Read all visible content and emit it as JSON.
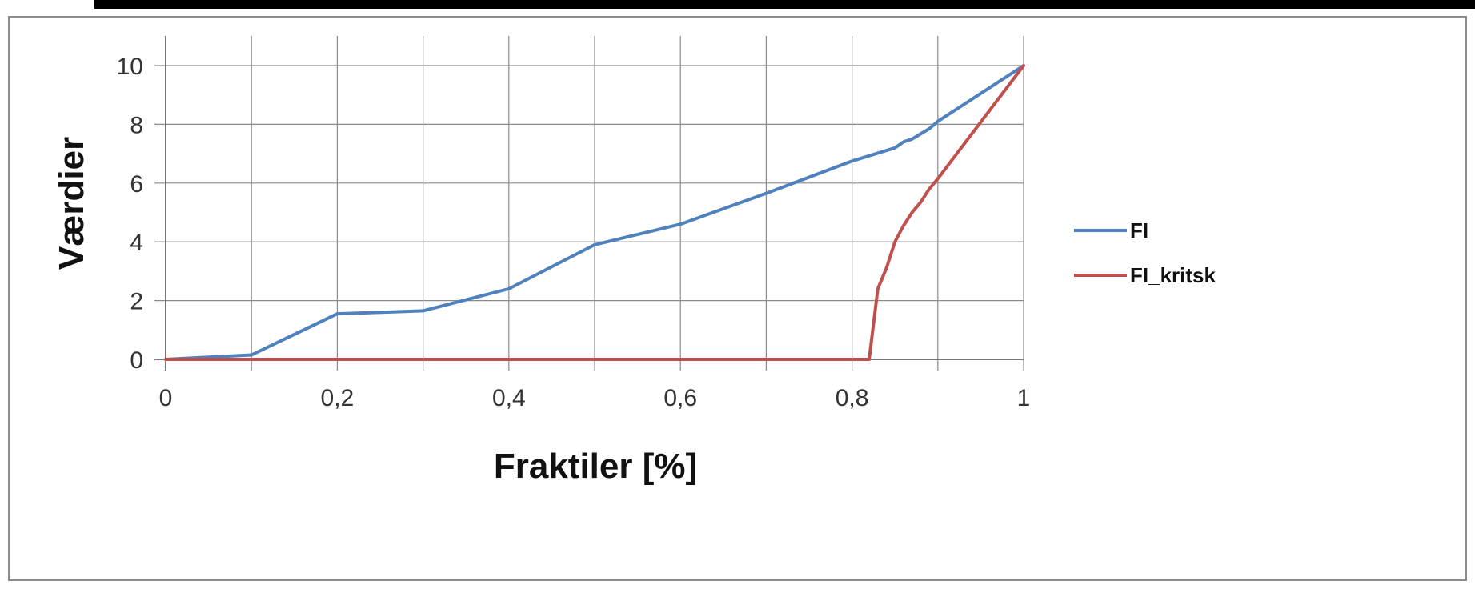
{
  "chart_data": {
    "type": "line",
    "xlabel": "Fraktiler [%]",
    "ylabel": "Værdier",
    "xlim": [
      0,
      1
    ],
    "ylim": [
      0,
      10
    ],
    "x_ticks": [
      {
        "value": 0,
        "label": "0"
      },
      {
        "value": 0.2,
        "label": "0,2"
      },
      {
        "value": 0.4,
        "label": "0,4"
      },
      {
        "value": 0.6,
        "label": "0,6"
      },
      {
        "value": 0.8,
        "label": "0,8"
      },
      {
        "value": 1,
        "label": "1"
      }
    ],
    "y_ticks": [
      {
        "value": 0,
        "label": "0"
      },
      {
        "value": 2,
        "label": "2"
      },
      {
        "value": 4,
        "label": "4"
      },
      {
        "value": 6,
        "label": "6"
      },
      {
        "value": 8,
        "label": "8"
      },
      {
        "value": 10,
        "label": "10"
      }
    ],
    "x_grid_step": 0.1,
    "grid": true,
    "legend_position": "right",
    "series": [
      {
        "name": "FI",
        "color": "#4f81bd",
        "points": [
          [
            0,
            0
          ],
          [
            0.1,
            0.15
          ],
          [
            0.2,
            1.55
          ],
          [
            0.3,
            1.65
          ],
          [
            0.4,
            2.4
          ],
          [
            0.5,
            3.9
          ],
          [
            0.6,
            4.6
          ],
          [
            0.7,
            5.65
          ],
          [
            0.8,
            6.75
          ],
          [
            0.85,
            7.2
          ],
          [
            0.86,
            7.4
          ],
          [
            0.87,
            7.5
          ],
          [
            0.89,
            7.85
          ],
          [
            0.9,
            8.1
          ],
          [
            1,
            10
          ]
        ]
      },
      {
        "name": "FI_kritsk",
        "color": "#c0504d",
        "points": [
          [
            0,
            0
          ],
          [
            0.8,
            0
          ],
          [
            0.82,
            0
          ],
          [
            0.83,
            2.4
          ],
          [
            0.84,
            3.1
          ],
          [
            0.85,
            4.0
          ],
          [
            0.86,
            4.55
          ],
          [
            0.87,
            5.0
          ],
          [
            0.88,
            5.35
          ],
          [
            0.89,
            5.8
          ],
          [
            0.9,
            6.15
          ],
          [
            1,
            10
          ]
        ]
      }
    ]
  }
}
